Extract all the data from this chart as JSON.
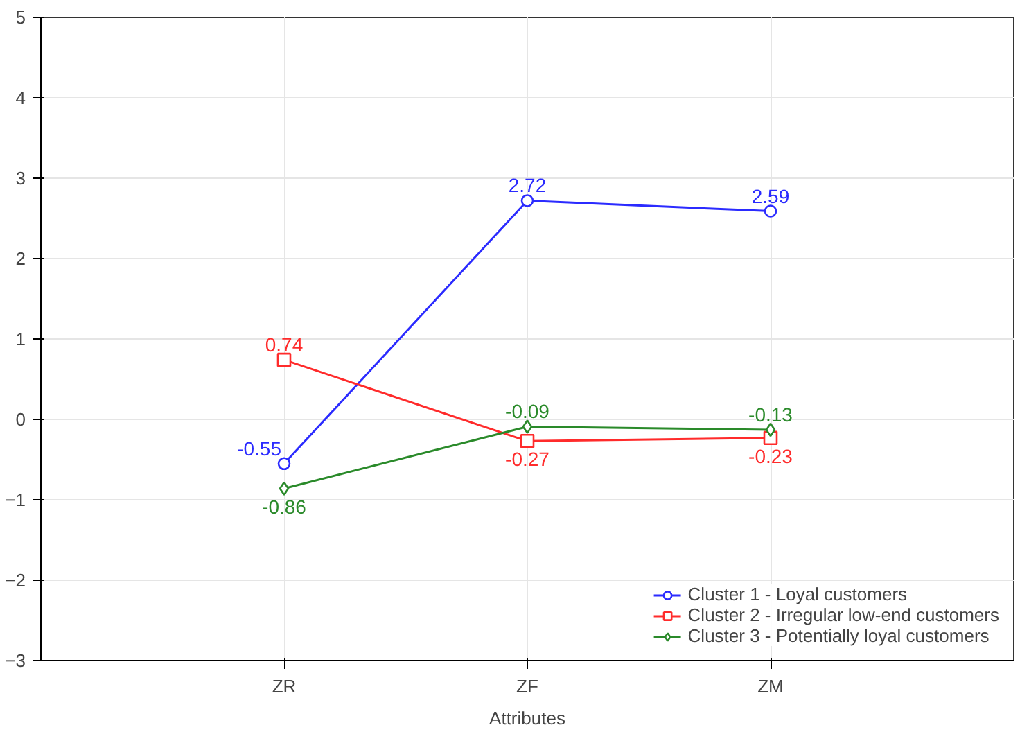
{
  "chart_data": {
    "type": "line",
    "xlabel": "Attributes",
    "categories": [
      "ZR",
      "ZF",
      "ZM"
    ],
    "ylim": [
      -3,
      5
    ],
    "yticks": [
      -3,
      -2,
      -1,
      0,
      1,
      2,
      3,
      4,
      5
    ],
    "grid": true,
    "legend": "bottom right",
    "data_labels": true,
    "series": [
      {
        "name": "Cluster 1 - Loyal customers",
        "color": "#2b2bff",
        "marker": "circle",
        "values": [
          -0.55,
          2.72,
          2.59
        ]
      },
      {
        "name": "Cluster 2 - Irregular low-end customers",
        "color": "#ff2b2b",
        "marker": "square",
        "values": [
          0.74,
          -0.27,
          -0.23
        ]
      },
      {
        "name": "Cluster 3 - Potentially loyal customers",
        "color": "#2a8a2a",
        "marker": "diamond",
        "values": [
          -0.86,
          -0.09,
          -0.13
        ]
      }
    ]
  }
}
